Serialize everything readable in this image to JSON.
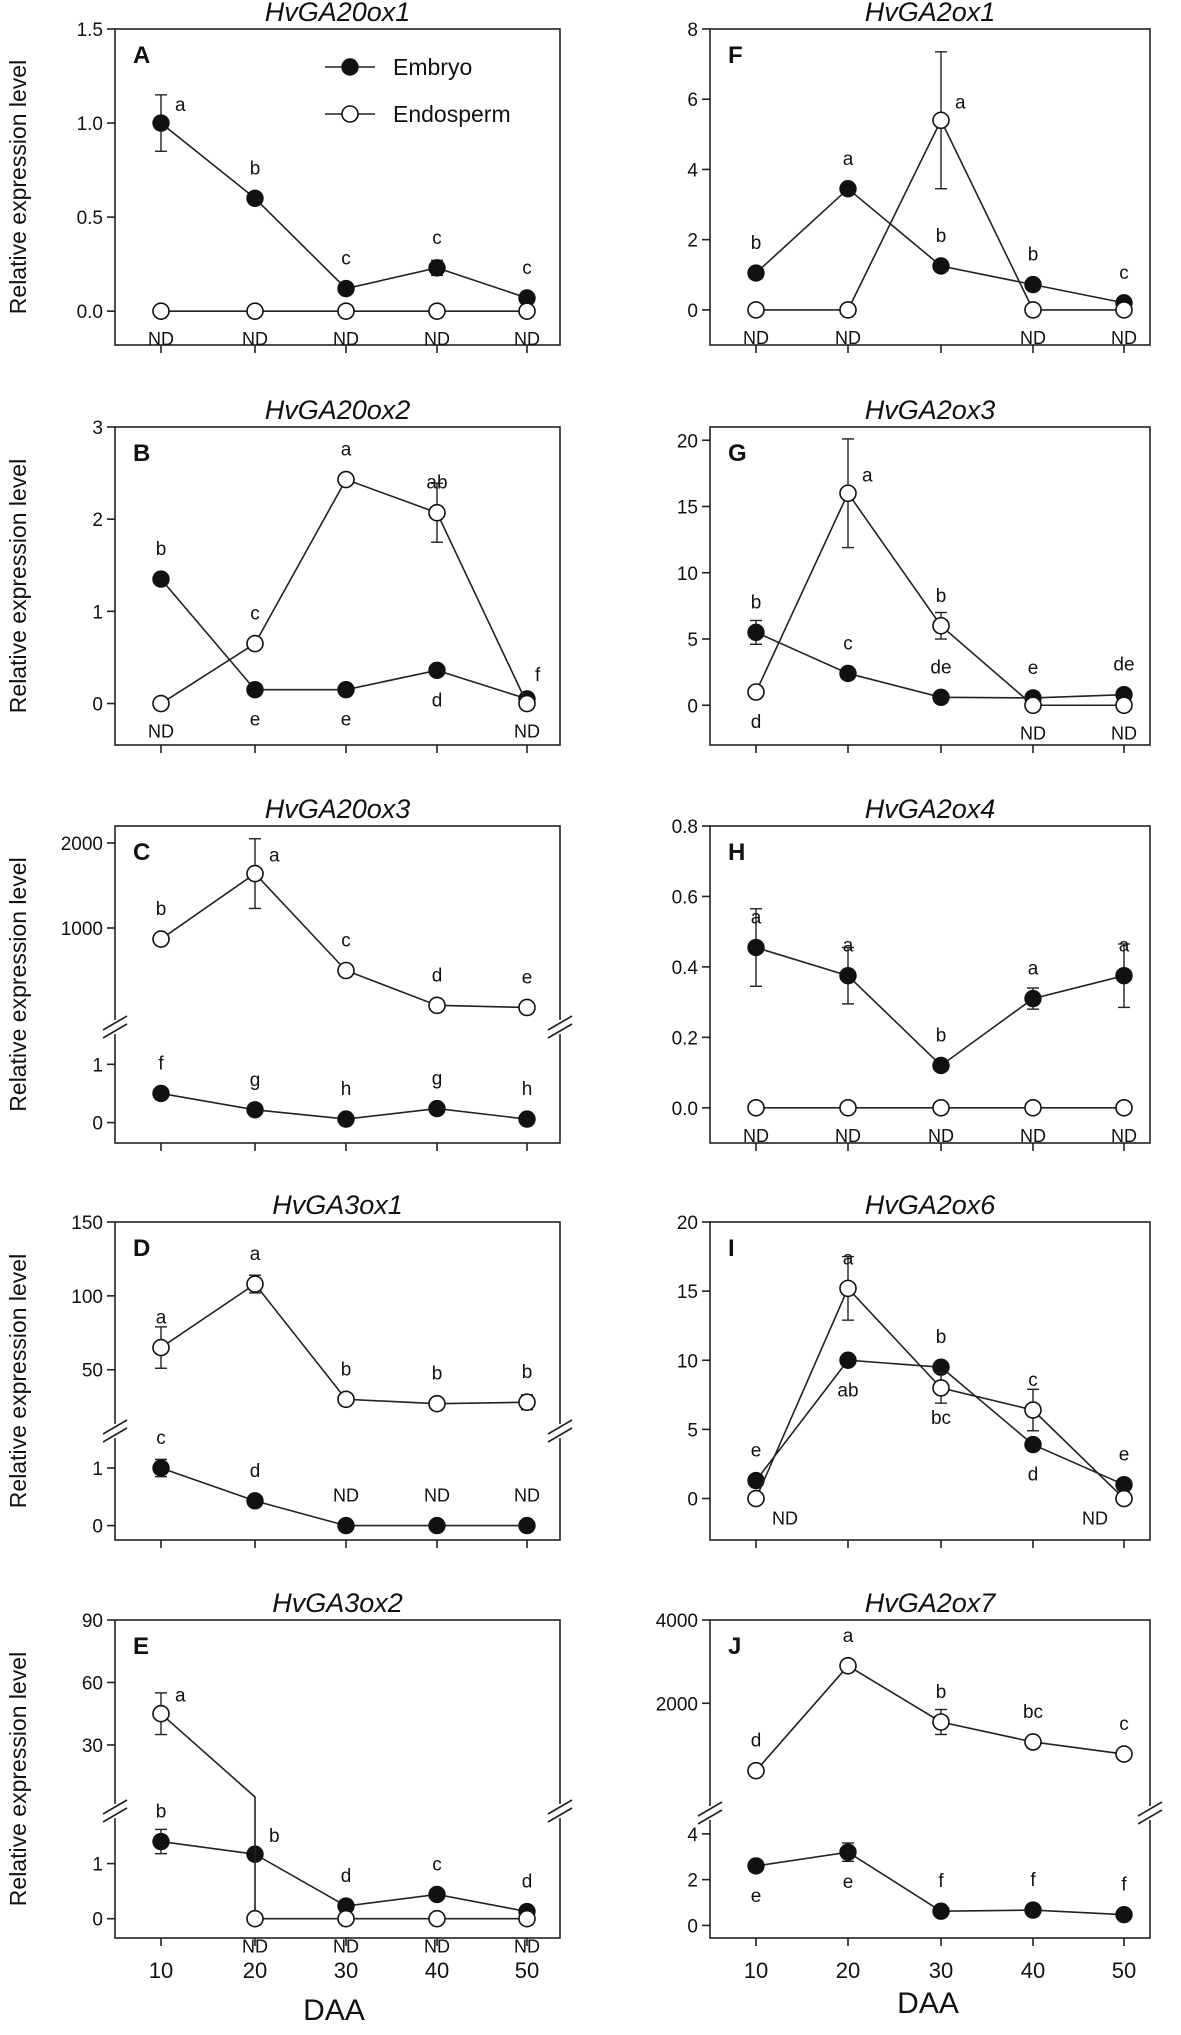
{
  "figure": {
    "y_axis_label": "Relative expression level",
    "x_axis_label": "DAA",
    "legend": [
      {
        "name": "Embryo",
        "marker": "filled-circle"
      },
      {
        "name": "Endosperm",
        "marker": "open-circle"
      }
    ],
    "nd_label": "ND"
  },
  "chart_data": [
    {
      "panel": "A",
      "title": "HvGA20ox1",
      "type": "line",
      "x": [
        10,
        20,
        30,
        40,
        50
      ],
      "yticks": [
        {
          "v": 0.0,
          "label": "0.0"
        },
        {
          "v": 0.5,
          "label": "0.5"
        },
        {
          "v": 1.0,
          "label": "1.0"
        },
        {
          "v": 1.5,
          "label": "1.5"
        }
      ],
      "ylim": [
        -0.18,
        1.5
      ],
      "series": [
        {
          "name": "Embryo",
          "values": [
            1.0,
            0.6,
            0.12,
            0.23,
            0.07
          ],
          "errors": [
            0.15,
            0.02,
            0.02,
            0.04,
            0.02
          ],
          "labels": [
            "a",
            "b",
            "c",
            "c",
            "c"
          ],
          "label_pos": [
            "right",
            "above",
            "above",
            "above",
            "above"
          ]
        },
        {
          "name": "Endosperm",
          "values": [
            0,
            0,
            0,
            0,
            0
          ],
          "errors": [
            0,
            0,
            0,
            0,
            0
          ],
          "labels": [
            "ND",
            "ND",
            "ND",
            "ND",
            "ND"
          ],
          "label_pos": [
            "below",
            "below",
            "below",
            "below",
            "below"
          ]
        }
      ]
    },
    {
      "panel": "B",
      "title": "HvGA20ox2",
      "type": "line",
      "x": [
        10,
        20,
        30,
        40,
        50
      ],
      "yticks": [
        {
          "v": 0,
          "label": "0"
        },
        {
          "v": 1,
          "label": "1"
        },
        {
          "v": 2,
          "label": "2"
        },
        {
          "v": 3,
          "label": "3"
        }
      ],
      "ylim": [
        -0.45,
        3
      ],
      "series": [
        {
          "name": "Embryo",
          "values": [
            1.35,
            0.15,
            0.15,
            0.36,
            0.05
          ],
          "errors": [
            0.05,
            0.02,
            0.02,
            0.04,
            0.02
          ],
          "labels": [
            "b",
            "e",
            "e",
            "d",
            "f"
          ],
          "label_pos": [
            "above",
            "below",
            "below",
            "below",
            "above-right"
          ]
        },
        {
          "name": "Endosperm",
          "values": [
            0,
            0.65,
            2.43,
            2.07,
            0
          ],
          "errors": [
            0,
            0.05,
            0.05,
            0.32,
            0
          ],
          "labels": [
            "ND",
            "c",
            "a",
            "ab",
            "ND"
          ],
          "label_pos": [
            "below",
            "above",
            "above",
            "above",
            "below"
          ]
        }
      ]
    },
    {
      "panel": "C",
      "title": "HvGA20ox3",
      "type": "line",
      "broken_axis": true,
      "x": [
        10,
        20,
        30,
        40,
        50
      ],
      "lower_yticks": [
        {
          "v": 0,
          "label": "0"
        },
        {
          "v": 1,
          "label": "1"
        }
      ],
      "upper_yticks": [
        {
          "v": 1000,
          "label": "1000"
        },
        {
          "v": 2000,
          "label": "2000"
        }
      ],
      "lower_range": [
        -0.35,
        1.4
      ],
      "upper_range": [
        0,
        2200
      ],
      "series": [
        {
          "name": "Embryo",
          "values": [
            0.5,
            0.22,
            0.06,
            0.24,
            0.06
          ],
          "errors": [
            0.03,
            0.02,
            0.02,
            0.02,
            0.02
          ],
          "labels": [
            "f",
            "g",
            "h",
            "g",
            "h"
          ],
          "label_pos": [
            "above",
            "above",
            "above",
            "above",
            "above"
          ]
        },
        {
          "name": "Endosperm",
          "values": [
            870,
            1640,
            500,
            90,
            65
          ],
          "errors": [
            30,
            410,
            20,
            10,
            10
          ],
          "labels": [
            "b",
            "a",
            "c",
            "d",
            "e"
          ],
          "label_pos": [
            "above",
            "right",
            "above",
            "above",
            "above"
          ]
        }
      ]
    },
    {
      "panel": "D",
      "title": "HvGA3ox1",
      "type": "line",
      "broken_axis": true,
      "x": [
        10,
        20,
        30,
        40,
        50
      ],
      "lower_yticks": [
        {
          "v": 0,
          "label": "0"
        },
        {
          "v": 1,
          "label": "1"
        }
      ],
      "upper_yticks": [
        {
          "v": 50,
          "label": "50"
        },
        {
          "v": 100,
          "label": "100"
        },
        {
          "v": 150,
          "label": "150"
        }
      ],
      "lower_range": [
        -0.25,
        1.4
      ],
      "upper_range": [
        18,
        150
      ],
      "series": [
        {
          "name": "Embryo",
          "values": [
            1.0,
            0.43,
            0,
            0,
            0
          ],
          "errors": [
            0.15,
            0.03,
            0,
            0,
            0
          ],
          "labels": [
            "c",
            "d",
            "ND",
            "ND",
            "ND"
          ],
          "label_pos": [
            "above",
            "above",
            "above",
            "above",
            "above"
          ]
        },
        {
          "name": "Endosperm",
          "values": [
            65,
            108,
            30,
            27,
            28
          ],
          "errors": [
            14,
            6,
            2,
            2,
            5
          ],
          "labels": [
            "a",
            "a",
            "b",
            "b",
            "b"
          ],
          "label_pos": [
            "above",
            "above",
            "above",
            "above",
            "above"
          ]
        }
      ]
    },
    {
      "panel": "E",
      "title": "HvGA3ox2",
      "type": "line",
      "broken_axis": true,
      "x": [
        10,
        20,
        30,
        40,
        50
      ],
      "lower_yticks": [
        {
          "v": 0,
          "label": "0"
        },
        {
          "v": 1,
          "label": "1"
        }
      ],
      "upper_yticks": [
        {
          "v": 30,
          "label": "30"
        },
        {
          "v": 60,
          "label": "60"
        },
        {
          "v": 90,
          "label": "90"
        }
      ],
      "lower_range": [
        -0.35,
        1.7
      ],
      "upper_range": [
        5,
        90
      ],
      "series": [
        {
          "name": "Embryo",
          "values": [
            1.4,
            1.17,
            0.23,
            0.44,
            0.13
          ],
          "errors": [
            0.22,
            0.05,
            0.05,
            0.05,
            0.04
          ],
          "labels": [
            "b",
            "b",
            "d",
            "c",
            "d"
          ],
          "label_pos": [
            "above",
            "right",
            "above",
            "above",
            "above"
          ]
        },
        {
          "name": "Endosperm",
          "values": [
            45,
            0,
            0,
            0,
            0
          ],
          "errors": [
            10,
            0,
            0,
            0,
            0
          ],
          "labels": [
            "a",
            "ND",
            "ND",
            "ND",
            "ND"
          ],
          "label_pos": [
            "right",
            "below",
            "below",
            "below",
            "below"
          ]
        }
      ]
    },
    {
      "panel": "F",
      "title": "HvGA2ox1",
      "type": "line",
      "x": [
        10,
        20,
        30,
        40,
        50
      ],
      "yticks": [
        {
          "v": 0,
          "label": "0"
        },
        {
          "v": 2,
          "label": "2"
        },
        {
          "v": 4,
          "label": "4"
        },
        {
          "v": 6,
          "label": "6"
        },
        {
          "v": 8,
          "label": "8"
        }
      ],
      "ylim": [
        -1.0,
        8
      ],
      "series": [
        {
          "name": "Embryo",
          "values": [
            1.05,
            3.45,
            1.25,
            0.72,
            0.2
          ],
          "errors": [
            0.05,
            0.05,
            0.05,
            0.05,
            0.03
          ],
          "labels": [
            "b",
            "a",
            "b",
            "b",
            "c"
          ],
          "label_pos": [
            "above",
            "above",
            "above",
            "above",
            "above"
          ]
        },
        {
          "name": "Endosperm",
          "values": [
            0,
            0,
            5.4,
            0,
            0
          ],
          "errors": [
            0,
            0,
            1.95,
            0,
            0
          ],
          "labels": [
            "ND",
            "ND",
            "a",
            "ND",
            "ND"
          ],
          "label_pos": [
            "below",
            "below",
            "right",
            "below",
            "below"
          ]
        }
      ]
    },
    {
      "panel": "G",
      "title": "HvGA2ox3",
      "type": "line",
      "x": [
        10,
        20,
        30,
        40,
        50
      ],
      "yticks": [
        {
          "v": 0,
          "label": "0"
        },
        {
          "v": 5,
          "label": "5"
        },
        {
          "v": 10,
          "label": "10"
        },
        {
          "v": 15,
          "label": "15"
        },
        {
          "v": 20,
          "label": "20"
        }
      ],
      "ylim": [
        -3.0,
        21
      ],
      "series": [
        {
          "name": "Embryo",
          "values": [
            5.5,
            2.4,
            0.6,
            0.55,
            0.8
          ],
          "errors": [
            0.9,
            0.3,
            0.1,
            0.1,
            0.1
          ],
          "labels": [
            "b",
            "c",
            "de",
            "e",
            "de"
          ],
          "label_pos": [
            "above",
            "above",
            "above",
            "above",
            "above"
          ]
        },
        {
          "name": "Endosperm",
          "values": [
            1.0,
            16.0,
            6.0,
            0,
            0
          ],
          "errors": [
            0.1,
            4.1,
            1.0,
            0,
            0
          ],
          "labels": [
            "d",
            "a",
            "b",
            "ND",
            "ND"
          ],
          "label_pos": [
            "below",
            "right",
            "above",
            "below",
            "below"
          ]
        }
      ]
    },
    {
      "panel": "H",
      "title": "HvGA2ox4",
      "type": "line",
      "x": [
        10,
        20,
        30,
        40,
        50
      ],
      "yticks": [
        {
          "v": 0.0,
          "label": "0.0"
        },
        {
          "v": 0.2,
          "label": "0.2"
        },
        {
          "v": 0.4,
          "label": "0.4"
        },
        {
          "v": 0.6,
          "label": "0.6"
        },
        {
          "v": 0.8,
          "label": "0.8"
        }
      ],
      "ylim": [
        -0.1,
        0.8
      ],
      "series": [
        {
          "name": "Embryo",
          "values": [
            0.455,
            0.375,
            0.12,
            0.31,
            0.375
          ],
          "errors": [
            0.11,
            0.08,
            0.01,
            0.03,
            0.09
          ],
          "labels": [
            "a",
            "a",
            "b",
            "a",
            "a"
          ],
          "label_pos": [
            "above",
            "above",
            "above",
            "above",
            "above"
          ]
        },
        {
          "name": "Endosperm",
          "values": [
            0,
            0,
            0,
            0,
            0
          ],
          "errors": [
            0,
            0,
            0,
            0,
            0
          ],
          "labels": [
            "ND",
            "ND",
            "ND",
            "ND",
            "ND"
          ],
          "label_pos": [
            "below",
            "below",
            "below",
            "below",
            "below"
          ]
        }
      ]
    },
    {
      "panel": "I",
      "title": "HvGA2ox6",
      "type": "line",
      "x": [
        10,
        20,
        30,
        40,
        50
      ],
      "yticks": [
        {
          "v": 0,
          "label": "0"
        },
        {
          "v": 5,
          "label": "5"
        },
        {
          "v": 10,
          "label": "10"
        },
        {
          "v": 15,
          "label": "15"
        },
        {
          "v": 20,
          "label": "20"
        }
      ],
      "ylim": [
        -3.0,
        20
      ],
      "series": [
        {
          "name": "Embryo",
          "values": [
            1.3,
            10.0,
            9.5,
            3.9,
            1.0
          ],
          "errors": [
            0.2,
            0.3,
            0.3,
            0.3,
            0.2
          ],
          "labels": [
            "e",
            "ab",
            "b",
            "d",
            "e"
          ],
          "label_pos": [
            "above",
            "below",
            "above",
            "below",
            "above"
          ]
        },
        {
          "name": "Endosperm",
          "values": [
            0,
            15.2,
            8.0,
            6.4,
            0
          ],
          "errors": [
            0,
            2.3,
            1.1,
            1.5,
            0
          ],
          "labels": [
            "ND",
            "a",
            "bc",
            "c",
            "ND"
          ],
          "label_pos": [
            "below-right",
            "above",
            "below",
            "above",
            "below-left"
          ]
        }
      ]
    },
    {
      "panel": "J",
      "title": "HvGA2ox7",
      "type": "line",
      "broken_axis": true,
      "x": [
        10,
        20,
        30,
        40,
        50
      ],
      "lower_yticks": [
        {
          "v": 0,
          "label": "0"
        },
        {
          "v": 2,
          "label": "2"
        },
        {
          "v": 4,
          "label": "4"
        }
      ],
      "upper_yticks": [
        {
          "v": 2000,
          "label": "2000"
        },
        {
          "v": 4000,
          "label": "4000"
        }
      ],
      "lower_range": [
        -0.55,
        4.3
      ],
      "upper_range": [
        -300,
        4000
      ],
      "series": [
        {
          "name": "Embryo",
          "values": [
            2.6,
            3.2,
            0.62,
            0.67,
            0.47
          ],
          "errors": [
            0.2,
            0.4,
            0.05,
            0.05,
            0.05
          ],
          "labels": [
            "e",
            "e",
            "f",
            "f",
            "f"
          ],
          "label_pos": [
            "below",
            "below",
            "above",
            "above",
            "above"
          ]
        },
        {
          "name": "Endosperm",
          "values": [
            380,
            2900,
            1550,
            1070,
            780
          ],
          "errors": [
            20,
            50,
            300,
            80,
            40
          ],
          "labels": [
            "d",
            "a",
            "b",
            "bc",
            "c"
          ],
          "label_pos": [
            "above",
            "above",
            "above",
            "above",
            "above"
          ]
        }
      ]
    }
  ]
}
